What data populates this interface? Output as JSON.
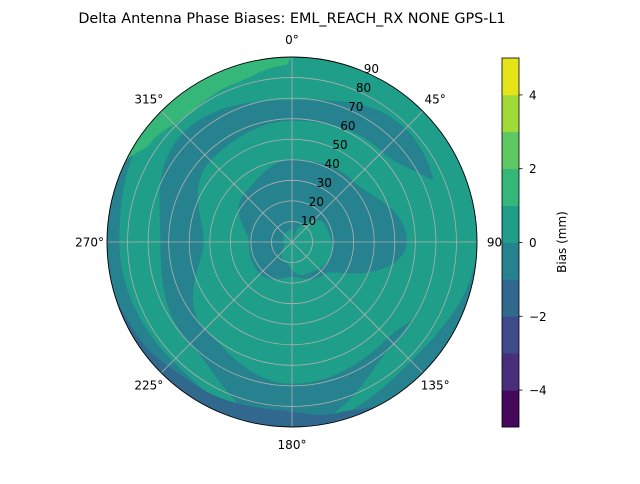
{
  "chart_data": {
    "type": "polar-contour",
    "title": "Delta Antenna Phase Biases: EML_REACH_RX    NONE GPS-L1",
    "angular_axis": {
      "zero_location": "N",
      "direction": "clockwise",
      "tick_labels": [
        {
          "angle": 0,
          "label": "0°"
        },
        {
          "angle": 45,
          "label": "45°"
        },
        {
          "angle": 90,
          "label": "90"
        },
        {
          "angle": 135,
          "label": "135°"
        },
        {
          "angle": 180,
          "label": "180°"
        },
        {
          "angle": 225,
          "label": "225°"
        },
        {
          "angle": 270,
          "label": "270°"
        },
        {
          "angle": 315,
          "label": "315°"
        }
      ]
    },
    "radial_axis": {
      "range": [
        0,
        90
      ],
      "ticks": [
        10,
        20,
        30,
        40,
        50,
        60,
        70,
        80,
        90
      ],
      "tick_labels": [
        "10",
        "20",
        "30",
        "40",
        "50",
        "60",
        "70",
        "80",
        "90"
      ]
    },
    "grid": true,
    "colorbar": {
      "label": "Bias (mm)",
      "levels": [
        -5,
        -4,
        -3,
        -2,
        -1,
        0,
        1,
        2,
        3,
        4,
        5
      ],
      "colors": [
        "#46085c",
        "#472f7d",
        "#3e4a89",
        "#31688e",
        "#26828e",
        "#1f9e89",
        "#35b779",
        "#5ec962",
        "#a0da39",
        "#e5e419"
      ],
      "ticks": [
        -4,
        -2,
        0,
        2,
        4
      ],
      "tick_labels": [
        "−4",
        "−2",
        "0",
        "2",
        "4"
      ],
      "placement": "right"
    },
    "background_level": [
      -1,
      0
    ],
    "regions": [
      {
        "level": [
          0,
          1
        ],
        "name": "spiral-band",
        "profile": [
          [
            0,
            40,
            59
          ],
          [
            45,
            42,
            62
          ],
          [
            90,
            56,
            90
          ],
          [
            135,
            22,
            66
          ],
          [
            180,
            17,
            69
          ],
          [
            225,
            22,
            60
          ],
          [
            270,
            21,
            43
          ],
          [
            315,
            33,
            56
          ],
          [
            360,
            40,
            59
          ]
        ]
      },
      {
        "level": [
          0,
          1
        ],
        "name": "outer-ring",
        "profile": [
          [
            0,
            69,
            90
          ],
          [
            45,
            78,
            90
          ],
          [
            90,
            72,
            90
          ],
          [
            135,
            70,
            82
          ],
          [
            180,
            90,
            90
          ],
          [
            225,
            70,
            82
          ],
          [
            270,
            64,
            84
          ],
          [
            315,
            75,
            90
          ],
          [
            360,
            69,
            90
          ]
        ]
      },
      {
        "level": [
          0,
          1
        ],
        "name": "center",
        "profile": [
          [
            20,
            0,
            8
          ],
          [
            60,
            0,
            18
          ],
          [
            110,
            0,
            20
          ],
          [
            160,
            0,
            17
          ],
          [
            200,
            0,
            10
          ],
          [
            250,
            0,
            4
          ],
          [
            360,
            0,
            6
          ]
        ]
      },
      {
        "level": [
          1,
          2
        ],
        "name": "northwest-edge",
        "profile": [
          [
            295,
            90,
            90
          ],
          [
            305,
            84,
            90
          ],
          [
            320,
            80,
            90
          ],
          [
            340,
            82,
            90
          ],
          [
            358,
            86,
            90
          ],
          [
            360,
            90,
            90
          ]
        ]
      },
      {
        "level": [
          -2,
          -1
        ],
        "name": "south-edge",
        "profile": [
          [
            150,
            90,
            90
          ],
          [
            165,
            86,
            90
          ],
          [
            185,
            82,
            90
          ],
          [
            215,
            84,
            90
          ],
          [
            240,
            88,
            90
          ],
          [
            255,
            90,
            90
          ]
        ]
      }
    ]
  }
}
